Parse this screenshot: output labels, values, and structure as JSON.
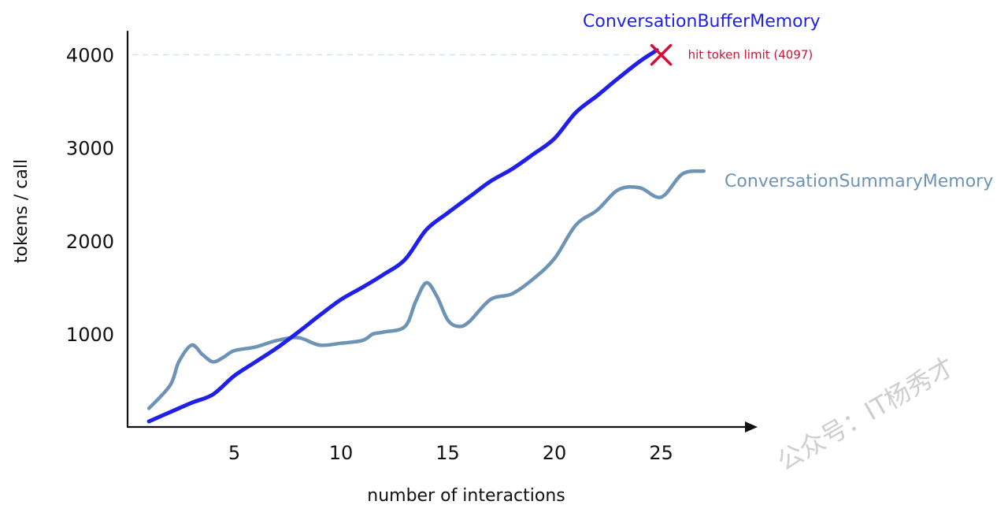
{
  "chart_data": {
    "type": "line",
    "xlabel": "number of interactions",
    "ylabel": "tokens / call",
    "x_ticks": [
      5,
      10,
      15,
      20,
      25
    ],
    "y_ticks": [
      1000,
      2000,
      3000,
      4000
    ],
    "xlim": [
      0,
      29
    ],
    "ylim": [
      0,
      4250
    ],
    "grid": false,
    "series": [
      {
        "name": "ConversationBufferMemory",
        "color": "#1f1fe6",
        "x": [
          1,
          2,
          3,
          4,
          5,
          6,
          7,
          8,
          9,
          10,
          11,
          12,
          13,
          14,
          15,
          16,
          17,
          18,
          19,
          20,
          21,
          22,
          23,
          24,
          24.8
        ],
        "y": [
          60,
          160,
          260,
          350,
          550,
          700,
          850,
          1020,
          1200,
          1370,
          1500,
          1640,
          1800,
          2120,
          2300,
          2470,
          2640,
          2770,
          2930,
          3100,
          3380,
          3560,
          3750,
          3930,
          4050
        ]
      },
      {
        "name": "ConversationSummaryMemory",
        "color": "#6d93b5",
        "x": [
          1,
          2,
          2.4,
          3,
          3.5,
          4,
          4.5,
          5,
          6,
          7,
          8,
          9,
          10,
          11,
          11.5,
          12,
          13,
          13.5,
          14,
          14.5,
          15,
          15.5,
          16,
          17,
          18,
          19,
          20,
          21,
          22,
          23,
          24,
          25,
          26,
          27
        ],
        "y": [
          200,
          450,
          700,
          880,
          780,
          700,
          750,
          820,
          860,
          930,
          960,
          880,
          900,
          930,
          1000,
          1020,
          1080,
          1350,
          1550,
          1400,
          1150,
          1080,
          1130,
          1370,
          1430,
          1590,
          1810,
          2170,
          2330,
          2550,
          2570,
          2470,
          2720,
          2750
        ]
      }
    ],
    "annotations": [
      {
        "text": "hit token limit (4097)",
        "x": 25,
        "y": 4050,
        "color": "#cf1133",
        "marker": "x"
      }
    ],
    "reference_lines": [
      {
        "y": 4000,
        "style": "dashed",
        "color": "#cfe3f2"
      }
    ]
  },
  "watermark": {
    "text": "公众号：IT杨秀才"
  }
}
